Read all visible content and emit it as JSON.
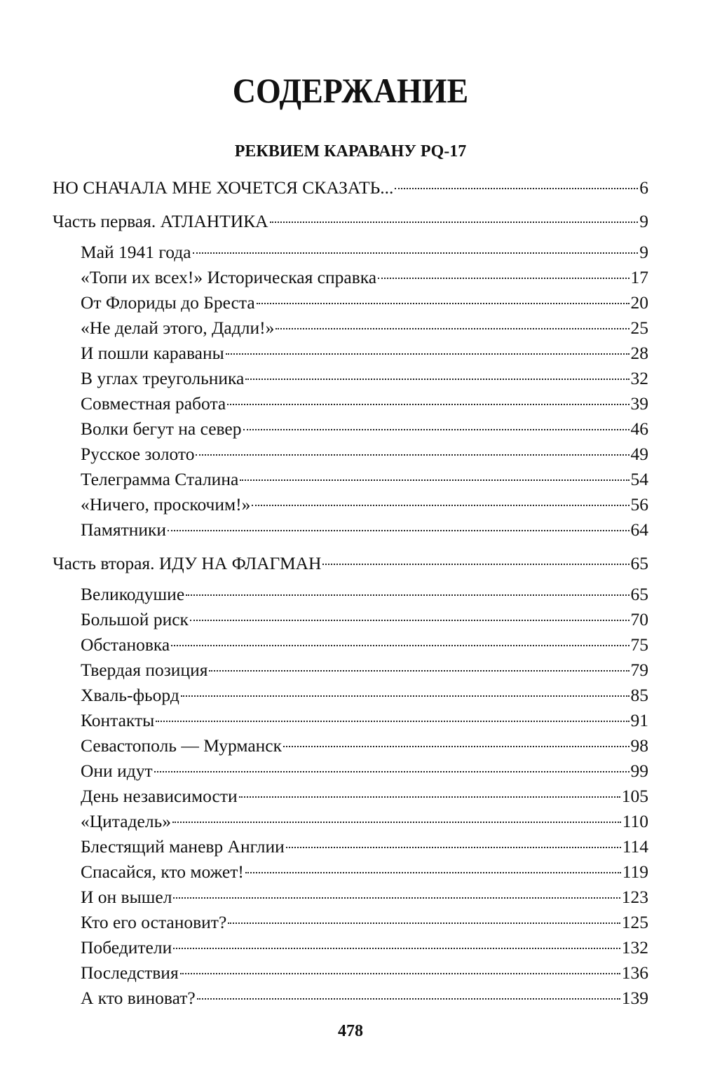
{
  "title": "СОДЕРЖАНИЕ",
  "subtitle": "РЕКВИЕМ КАРАВАНУ PQ-17",
  "intro": {
    "label": "НО СНАЧАЛА МНЕ ХОЧЕТСЯ СКАЗАТЬ...",
    "page": "6"
  },
  "parts": [
    {
      "label": "Часть первая. АТЛАНТИКА",
      "page": "9",
      "items": [
        {
          "label": "Май 1941 года",
          "page": "9"
        },
        {
          "label": "«Топи их всех!» Историческая справка",
          "page": "17"
        },
        {
          "label": "От Флориды до Бреста",
          "page": "20"
        },
        {
          "label": "«Не делай этого, Дадли!»",
          "page": "25"
        },
        {
          "label": "И пошли караваны",
          "page": "28"
        },
        {
          "label": "В углах треугольника",
          "page": "32"
        },
        {
          "label": "Совместная работа",
          "page": "39"
        },
        {
          "label": "Волки бегут на север",
          "page": "46"
        },
        {
          "label": "Русское золото",
          "page": "49"
        },
        {
          "label": "Телеграмма Сталина",
          "page": "54"
        },
        {
          "label": "«Ничего, проскочим!»",
          "page": "56"
        },
        {
          "label": "Памятники",
          "page": "64"
        }
      ]
    },
    {
      "label": "Часть вторая. ИДУ НА ФЛАГМАН",
      "page": "65",
      "items": [
        {
          "label": "Великодушие",
          "page": "65"
        },
        {
          "label": "Большой риск",
          "page": "70"
        },
        {
          "label": "Обстановка",
          "page": "75"
        },
        {
          "label": "Твердая позиция",
          "page": "79"
        },
        {
          "label": "Хваль-фьорд",
          "page": "85"
        },
        {
          "label": "Контакты",
          "page": "91"
        },
        {
          "label": "Севастополь — Мурманск",
          "page": "98"
        },
        {
          "label": "Они идут",
          "page": "99"
        },
        {
          "label": "День независимости",
          "page": "105"
        },
        {
          "label": "«Цитадель»",
          "page": "110"
        },
        {
          "label": "Блестящий маневр Англии",
          "page": "114"
        },
        {
          "label": "Спасайся, кто может!",
          "page": "119"
        },
        {
          "label": "И он вышел",
          "page": "123"
        },
        {
          "label": "Кто его остановит?",
          "page": "125"
        },
        {
          "label": "Победители",
          "page": "132"
        },
        {
          "label": "Последствия",
          "page": "136"
        },
        {
          "label": "А кто виноват?",
          "page": "139"
        }
      ]
    }
  ],
  "page_number": "478"
}
